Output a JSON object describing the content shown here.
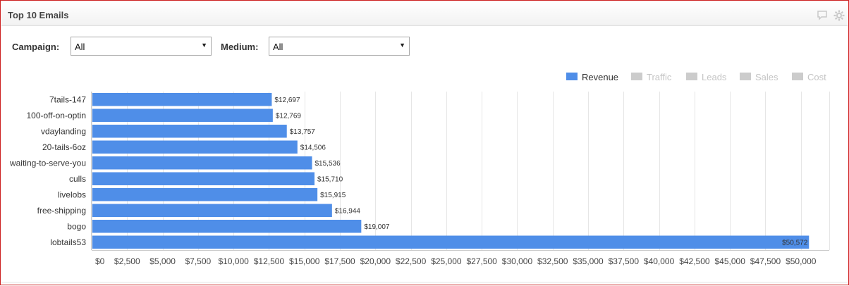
{
  "panel": {
    "title": "Top 10 Emails"
  },
  "icons": {
    "comment": "comment-icon",
    "settings": "gear-icon"
  },
  "filters": {
    "campaign_label": "Campaign:",
    "campaign_value": "All",
    "medium_label": "Medium:",
    "medium_value": "All"
  },
  "legend": [
    {
      "label": "Revenue",
      "color": "#4f8ee8",
      "active": true
    },
    {
      "label": "Traffic",
      "color": "#cccccc",
      "active": false
    },
    {
      "label": "Leads",
      "color": "#cccccc",
      "active": false
    },
    {
      "label": "Sales",
      "color": "#cccccc",
      "active": false
    },
    {
      "label": "Cost",
      "color": "#cccccc",
      "active": false
    }
  ],
  "chart_data": {
    "type": "bar",
    "orientation": "horizontal",
    "categories": [
      "7tails-147",
      "100-off-on-optin",
      "vdaylanding",
      "20-tails-6oz",
      "waiting-to-serve-you",
      "culls",
      "livelobs",
      "free-shipping",
      "bogo",
      "lobtails53"
    ],
    "series": [
      {
        "name": "Revenue",
        "values": [
          12697,
          12769,
          13757,
          14506,
          15536,
          15710,
          15915,
          16944,
          19007,
          50572
        ],
        "color": "#4f8ee8"
      }
    ],
    "data_labels": [
      "$12,697",
      "$12,769",
      "$13,757",
      "$14,506",
      "$15,536",
      "$15,710",
      "$15,915",
      "$16,944",
      "$19,007",
      "$50,572"
    ],
    "x_ticks": [
      0,
      2500,
      5000,
      7500,
      10000,
      12500,
      15000,
      17500,
      20000,
      22500,
      25000,
      27500,
      30000,
      32500,
      35000,
      37500,
      40000,
      42500,
      45000,
      47500,
      50000
    ],
    "x_tick_labels": [
      "$0",
      "$2,500",
      "$5,000",
      "$7,500",
      "$10,000",
      "$12,500",
      "$15,000",
      "$17,500",
      "$20,000",
      "$22,500",
      "$25,000",
      "$27,500",
      "$30,000",
      "$32,500",
      "$35,000",
      "$37,500",
      "$40,000",
      "$42,500",
      "$45,000",
      "$47,500",
      "$50,000"
    ],
    "xlim": [
      0,
      52000
    ],
    "grid": true,
    "legend_position": "top-right"
  }
}
